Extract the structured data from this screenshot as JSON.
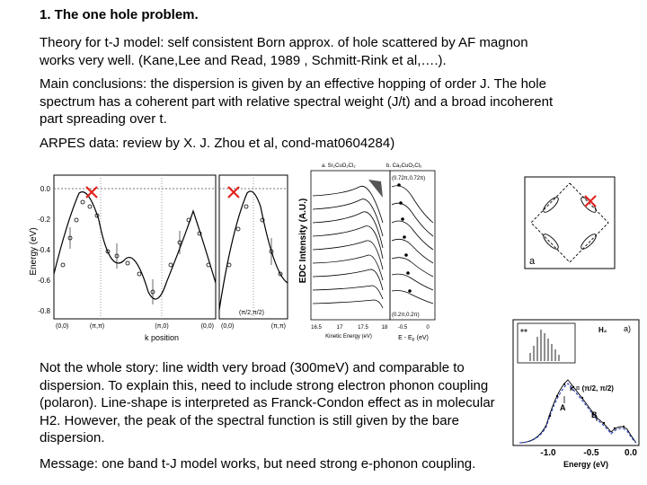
{
  "slide": {
    "title": "1. The one hole problem.",
    "p1": "Theory for t-J model: self consistent Born approx. of hole scattered by AF magnon works very well. (Kane,Lee and Read, 1989 , Schmitt-Rink et al,….).",
    "p2": "Main conclusions: the dispersion is given by an effective hopping of order J. The hole spectrum has a coherent part with relative spectral weight (J/t) and a broad incoherent part spreading over t.",
    "p3": "ARPES data: review by X. J. Zhou et al, cond-mat0604284)",
    "p4": "Not the whole story: line width very broad (300meV) and comparable to dispersion. To explain this, need to include strong electron phonon coupling (polaron). Line-shape is interpreted as Franck-Condon effect as in molecular H2. However, the peak of the spectral function is still given by the bare dispersion.",
    "p5": "Message: one band t-J model works, but need strong e-phonon coupling."
  },
  "fig_dispersion": {
    "ylabel": "Energy (eV)",
    "xlabel": "k position",
    "y_ticks": [
      "0.0",
      "-0.2",
      "-0.4",
      "-0.6",
      "-0.8"
    ],
    "x_ticks_left": [
      "(0,0)",
      "(π,π)",
      "(π,0)",
      "(0,0)"
    ],
    "x_ticks_right": [
      "(0,0)",
      "(π/2,π/2)",
      "(π,π)"
    ]
  },
  "fig_edc": {
    "ylabel": "EDC Intensity (A.U.)",
    "panel_a": "a. Sr₂CuO₂Cl₂",
    "panel_b": "b. Ca₂CuO₂Cl₂",
    "k_top": "(0.72π,0.72π)",
    "k_bottom": "(0.2π,0.2π)",
    "xlabel_a": "Kinetic Energy (eV)",
    "xlabel_b": "E - E",
    "xlabel_b_sub": "F",
    "xlabel_b_unit": " (eV)",
    "x_ticks_a": [
      "16.5",
      "17",
      "17.5",
      "18"
    ],
    "x_ticks_b": [
      "-0.5",
      "0"
    ]
  },
  "fig_bz": {
    "label": "a"
  },
  "fig_spectral": {
    "label_a": "a)",
    "label_h2": "H₂",
    "label_k": "k = (π/2, π/2)",
    "peak_A": "A",
    "peak_B": "B",
    "xlabel": "Energy (eV)",
    "x_ticks": [
      "-1.0",
      "-0.5",
      "0.0"
    ]
  },
  "colors": {
    "marker_red": "#e2211c",
    "fit_blue": "#2a3fbf"
  }
}
